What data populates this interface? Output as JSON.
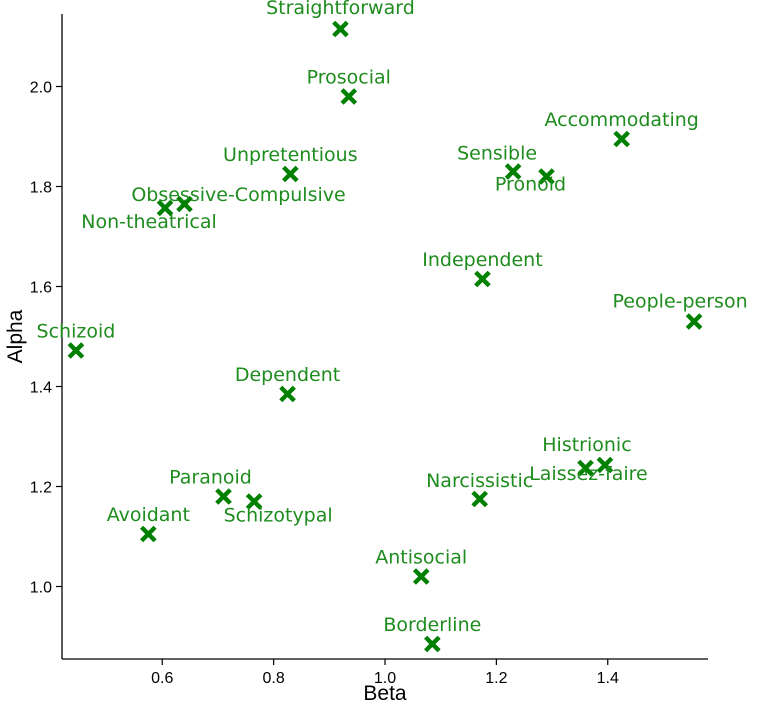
{
  "colors": {
    "marker": "#008000",
    "label": "#1e8c1e",
    "axis": "#000000"
  },
  "chart_data": {
    "type": "scatter",
    "title": "",
    "xlabel": "Beta",
    "ylabel": "Alpha",
    "xlim": [
      0.42,
      1.58
    ],
    "ylim": [
      0.855,
      2.145
    ],
    "xticks": [
      0.6,
      0.8,
      1.0,
      1.2,
      1.4
    ],
    "yticks": [
      1.0,
      1.2,
      1.4,
      1.6,
      1.8,
      2.0
    ],
    "xtick_labels": [
      "0.6",
      "0.8",
      "1.0",
      "1.2",
      "1.4"
    ],
    "ytick_labels": [
      "1.0",
      "1.2",
      "1.4",
      "1.6",
      "1.8",
      "2.0"
    ],
    "grid": false,
    "legend": "none",
    "marker": "X",
    "points": [
      {
        "label": "Straightforward",
        "x": 0.92,
        "y": 2.115
      },
      {
        "label": "Prosocial",
        "x": 0.935,
        "y": 1.98
      },
      {
        "label": "Accommodating",
        "x": 1.425,
        "y": 1.895
      },
      {
        "label": "Unpretentious",
        "x": 0.83,
        "y": 1.825
      },
      {
        "label": "Sensible",
        "x": 1.23,
        "y": 1.83
      },
      {
        "label": "Pronoid",
        "x": 1.29,
        "y": 1.82
      },
      {
        "label": "Obsessive-Compulsive",
        "x": 0.64,
        "y": 1.765
      },
      {
        "label": "Non-theatrical",
        "x": 0.605,
        "y": 1.757
      },
      {
        "label": "Independent",
        "x": 1.175,
        "y": 1.615
      },
      {
        "label": "People-person",
        "x": 1.555,
        "y": 1.53
      },
      {
        "label": "Schizoid",
        "x": 0.445,
        "y": 1.472
      },
      {
        "label": "Dependent",
        "x": 0.825,
        "y": 1.385
      },
      {
        "label": "Histrionic",
        "x": 1.395,
        "y": 1.243
      },
      {
        "label": "Laissez-faire",
        "x": 1.36,
        "y": 1.237
      },
      {
        "label": "Paranoid",
        "x": 0.71,
        "y": 1.18
      },
      {
        "label": "Narcissistic",
        "x": 1.17,
        "y": 1.175
      },
      {
        "label": "Schizotypal",
        "x": 0.765,
        "y": 1.17
      },
      {
        "label": "Avoidant",
        "x": 0.575,
        "y": 1.105
      },
      {
        "label": "Antisocial",
        "x": 1.065,
        "y": 1.02
      },
      {
        "label": "Borderline",
        "x": 1.085,
        "y": 0.885
      }
    ]
  }
}
